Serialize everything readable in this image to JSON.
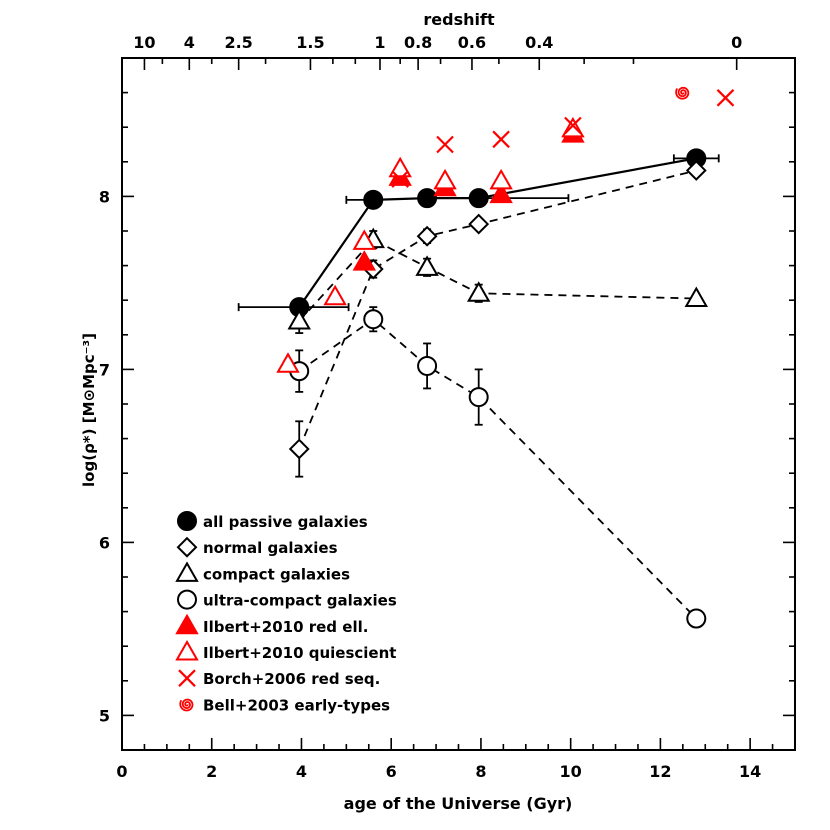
{
  "chart_data": {
    "type": "scatter",
    "xlabel": "age of the Universe (Gyr)",
    "ylabel": "log(ρ*) [M⊙Mpc⁻³]",
    "top_axis_title": "redshift",
    "xlim": [
      0,
      15
    ],
    "ylim": [
      4.8,
      8.8
    ],
    "grid": false,
    "legend_position": "bottom-left",
    "x_ticks": [
      "0",
      "2",
      "4",
      "6",
      "8",
      "10",
      "12",
      "14"
    ],
    "y_ticks": [
      "5",
      "6",
      "7",
      "8"
    ],
    "top_ticks": [
      {
        "label": "10",
        "age": 0.5
      },
      {
        "label": "4",
        "age": 1.5
      },
      {
        "label": "2.5",
        "age": 2.6
      },
      {
        "label": "1.5",
        "age": 4.2
      },
      {
        "label": "1",
        "age": 5.75
      },
      {
        "label": "0.8",
        "age": 6.6
      },
      {
        "label": "0.6",
        "age": 7.8
      },
      {
        "label": "0.4",
        "age": 9.3
      },
      {
        "label": "0",
        "age": 13.7
      }
    ],
    "series": [
      {
        "name": "all passive galaxies",
        "marker": "filled-circle",
        "color": "#000000",
        "line": "solid",
        "points": [
          {
            "x": 3.95,
            "y": 7.36,
            "xerr": [
              1.35,
              1.1
            ],
            "yerr": 0.04
          },
          {
            "x": 5.6,
            "y": 7.98,
            "xerr": [
              0.6,
              0.0
            ],
            "yerr": 0.02
          },
          {
            "x": 6.8,
            "y": 7.99,
            "xerr": [
              0.0,
              0.0
            ],
            "yerr": 0.02
          },
          {
            "x": 7.95,
            "y": 7.99,
            "xerr": [
              0.0,
              2.0
            ],
            "yerr": 0.02
          },
          {
            "x": 12.8,
            "y": 8.22,
            "xerr": [
              0.5,
              0.5
            ],
            "yerr": 0.02
          }
        ]
      },
      {
        "name": "normal galaxies",
        "marker": "open-diamond",
        "color": "#000000",
        "line": "dashed",
        "points": [
          {
            "x": 3.95,
            "y": 6.54,
            "yerr": 0.16
          },
          {
            "x": 5.6,
            "y": 7.58,
            "yerr": 0.05
          },
          {
            "x": 6.8,
            "y": 7.77,
            "yerr": 0.04
          },
          {
            "x": 7.95,
            "y": 7.84,
            "yerr": 0.03
          },
          {
            "x": 12.8,
            "y": 8.15,
            "yerr": 0.02
          }
        ]
      },
      {
        "name": "compact galaxies",
        "marker": "open-triangle",
        "color": "#000000",
        "line": "dashed",
        "points": [
          {
            "x": 3.95,
            "y": 7.28,
            "yerr": 0.07
          },
          {
            "x": 5.6,
            "y": 7.75,
            "yerr": 0.05
          },
          {
            "x": 6.8,
            "y": 7.59,
            "yerr": 0.05
          },
          {
            "x": 7.95,
            "y": 7.44,
            "yerr": 0.05
          },
          {
            "x": 12.8,
            "y": 7.41,
            "yerr": 0.02
          }
        ]
      },
      {
        "name": "ultra-compact galaxies",
        "marker": "open-circle",
        "color": "#000000",
        "line": "dashed",
        "points": [
          {
            "x": 3.95,
            "y": 6.99,
            "yerr": 0.12
          },
          {
            "x": 5.6,
            "y": 7.29,
            "yerr": 0.07
          },
          {
            "x": 6.8,
            "y": 7.02,
            "yerr": 0.13
          },
          {
            "x": 7.95,
            "y": 6.84,
            "yerr": 0.16
          },
          {
            "x": 12.8,
            "y": 5.56,
            "yerr": 0.02
          }
        ]
      },
      {
        "name": "Ilbert+2010 red ell.",
        "marker": "filled-triangle",
        "color": "#ff0000",
        "line": "none",
        "points": [
          {
            "x": 5.4,
            "y": 7.62
          },
          {
            "x": 6.2,
            "y": 8.11
          },
          {
            "x": 7.2,
            "y": 8.05
          },
          {
            "x": 8.45,
            "y": 8.01
          },
          {
            "x": 10.05,
            "y": 8.36
          }
        ]
      },
      {
        "name": "Ilbert+2010 quiescient",
        "marker": "open-triangle",
        "color": "#ff0000",
        "line": "none",
        "points": [
          {
            "x": 3.7,
            "y": 7.03
          },
          {
            "x": 4.75,
            "y": 7.42
          },
          {
            "x": 5.4,
            "y": 7.74
          },
          {
            "x": 6.2,
            "y": 8.16
          },
          {
            "x": 7.2,
            "y": 8.09
          },
          {
            "x": 8.45,
            "y": 8.09
          },
          {
            "x": 10.05,
            "y": 8.39
          }
        ]
      },
      {
        "name": "Borch+2006 red seq.",
        "marker": "x",
        "color": "#ff0000",
        "line": "none",
        "points": [
          {
            "x": 6.2,
            "y": 8.1
          },
          {
            "x": 7.2,
            "y": 8.3
          },
          {
            "x": 8.45,
            "y": 8.33
          },
          {
            "x": 10.05,
            "y": 8.41
          },
          {
            "x": 13.45,
            "y": 8.57
          }
        ]
      },
      {
        "name": "Bell+2003 early-types",
        "marker": "spiral",
        "color": "#ff0000",
        "line": "none",
        "points": [
          {
            "x": 12.5,
            "y": 8.6
          }
        ]
      }
    ]
  }
}
